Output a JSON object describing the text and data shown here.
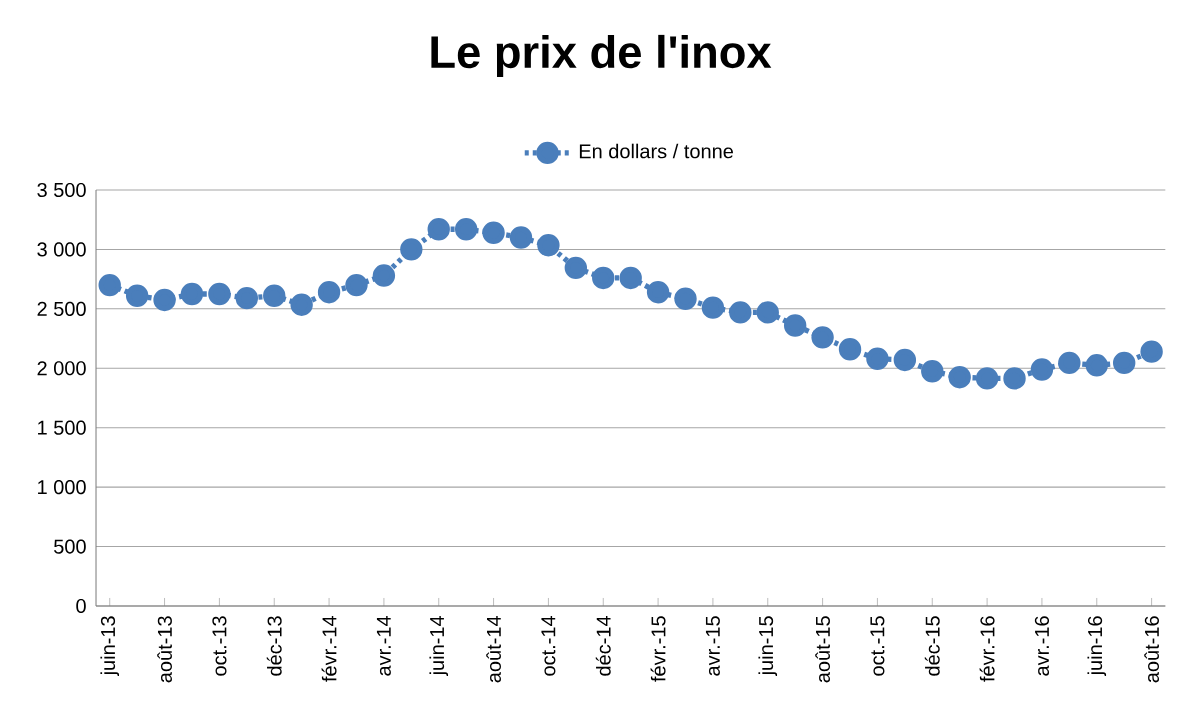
{
  "chart_data": {
    "type": "line",
    "title": "Le prix de l'inox",
    "categories": [
      "juin-13",
      null,
      "août-13",
      null,
      "oct.-13",
      null,
      "déc-13",
      null,
      "févr.-14",
      null,
      "avr.-14",
      null,
      "juin-14",
      null,
      "août-14",
      null,
      "oct.-14",
      null,
      "déc-14",
      null,
      "févr.-15",
      null,
      "avr.-15",
      null,
      "juin-15",
      null,
      "août-15",
      null,
      "oct.-15",
      null,
      "déc-15",
      null,
      "févr.-16",
      null,
      "avr.-16",
      null,
      "juin-16",
      null,
      "août-16"
    ],
    "series": [
      {
        "name": "En dollars / tonne",
        "color": "#4a7ebb",
        "values": [
          2700,
          2610,
          2575,
          2625,
          2625,
          2590,
          2610,
          2535,
          2640,
          2700,
          2780,
          3000,
          3170,
          3170,
          3140,
          3100,
          3035,
          2845,
          2760,
          2760,
          2640,
          2585,
          2510,
          2470,
          2470,
          2360,
          2260,
          2160,
          2080,
          2070,
          1975,
          1925,
          1915,
          1915,
          1990,
          2045,
          2025,
          2045,
          2140
        ]
      }
    ],
    "ylim": [
      0,
      3500
    ],
    "yticks": [
      0,
      {
        "value": 500,
        "label": "500"
      },
      {
        "value": 1000,
        "label": "1 000"
      },
      {
        "value": 1500,
        "label": "1 500"
      },
      {
        "value": 2000,
        "label": "2 000"
      },
      {
        "value": 2500,
        "label": "2 500"
      },
      {
        "value": 3000,
        "label": "3 000"
      },
      {
        "value": 3500,
        "label": "3 500"
      }
    ],
    "grid": "y",
    "legend": "top",
    "marker": "circle",
    "line_style": "dotted"
  }
}
